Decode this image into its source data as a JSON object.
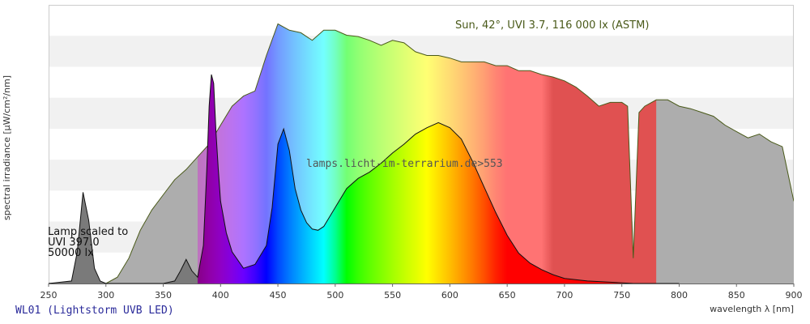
{
  "chart_data": {
    "type": "area",
    "xlabel": "wavelength λ [nm]",
    "ylabel": "spectral irradiance [µW/cm²/nm]",
    "xlim": [
      250,
      900
    ],
    "x_ticks": [
      250,
      300,
      350,
      400,
      450,
      500,
      550,
      600,
      650,
      700,
      750,
      800,
      850,
      900
    ],
    "grid": "horizontal bands",
    "sun_label": "Sun, 42°, UVI 3.7, 116 000 lx (ASTM)",
    "watermark": "lamps.licht-im-terrarium.de>553",
    "lamp_note": [
      "Lamp scaled to",
      "UVI 397.0",
      "50000 lx"
    ],
    "series": [
      {
        "name": "Sun, 42°, UVI 3.7, 116 000 lx (ASTM)",
        "x": [
          300,
          310,
          320,
          330,
          340,
          350,
          360,
          370,
          380,
          390,
          400,
          410,
          420,
          430,
          440,
          450,
          460,
          470,
          480,
          490,
          500,
          510,
          520,
          530,
          540,
          550,
          560,
          570,
          580,
          590,
          600,
          610,
          620,
          630,
          640,
          650,
          660,
          670,
          680,
          690,
          700,
          710,
          720,
          730,
          740,
          750,
          755,
          760,
          765,
          770,
          780,
          790,
          800,
          810,
          820,
          830,
          840,
          850,
          860,
          870,
          880,
          890,
          900
        ],
        "values": [
          0,
          5,
          20,
          42,
          58,
          70,
          82,
          90,
          100,
          110,
          125,
          140,
          148,
          152,
          180,
          205,
          200,
          198,
          192,
          200,
          200,
          196,
          195,
          192,
          188,
          192,
          190,
          183,
          180,
          180,
          178,
          175,
          175,
          175,
          172,
          172,
          168,
          168,
          165,
          163,
          160,
          155,
          148,
          140,
          143,
          143,
          140,
          20,
          135,
          140,
          145,
          145,
          140,
          138,
          135,
          132,
          125,
          120,
          115,
          118,
          112,
          108,
          65
        ]
      },
      {
        "name": "WL01 (Lightstorm UVB LED)",
        "x": [
          250,
          270,
          275,
          280,
          285,
          290,
          295,
          300,
          310,
          330,
          350,
          360,
          365,
          370,
          375,
          380,
          385,
          388,
          390,
          392,
          394,
          396,
          398,
          400,
          405,
          410,
          420,
          430,
          440,
          445,
          450,
          455,
          460,
          465,
          470,
          475,
          480,
          485,
          490,
          500,
          510,
          520,
          530,
          540,
          550,
          560,
          570,
          580,
          590,
          600,
          610,
          620,
          630,
          640,
          650,
          660,
          670,
          680,
          690,
          700,
          720,
          740,
          760,
          780,
          800
        ],
        "values": [
          0,
          2,
          25,
          72,
          50,
          12,
          2,
          0,
          0,
          0,
          0,
          2,
          10,
          19,
          10,
          5,
          30,
          90,
          140,
          165,
          158,
          120,
          90,
          65,
          40,
          25,
          12,
          15,
          30,
          60,
          110,
          122,
          105,
          75,
          58,
          48,
          43,
          42,
          45,
          60,
          75,
          83,
          88,
          95,
          103,
          110,
          118,
          123,
          127,
          123,
          114,
          96,
          76,
          56,
          38,
          24,
          16,
          11,
          7,
          4,
          2,
          1,
          0,
          0,
          0
        ]
      }
    ],
    "colors": {
      "sun_line": "#4a5a1a",
      "lamp_line": "#111111",
      "uv_gray": "#a9a9a9",
      "ir_gray": "#adadad",
      "band": "#f1f1f1",
      "border": "#cccccc",
      "tick_text": "#333333",
      "lamp_id_text": "#2a2a9a"
    }
  },
  "lamp_id": "WL01 (Lightstorm UVB LED)"
}
